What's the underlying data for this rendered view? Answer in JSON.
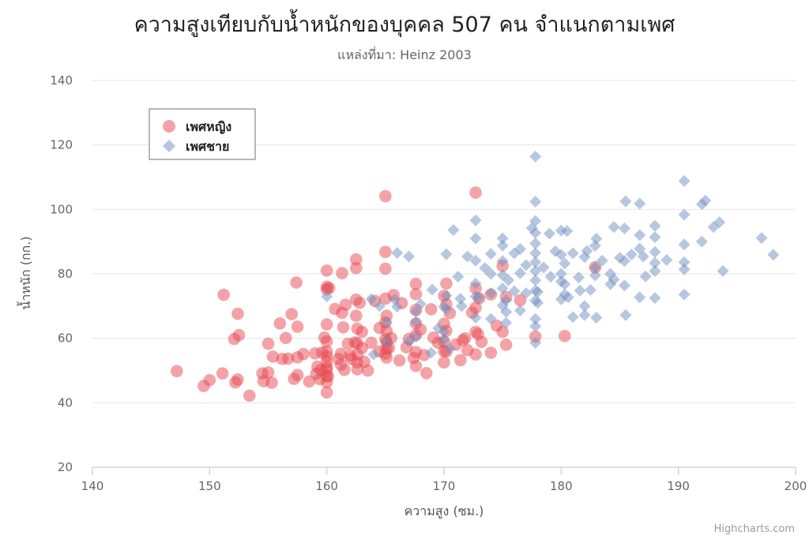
{
  "colors": {
    "female": "#e8484f",
    "male": "#6f8fc2",
    "grid": "#e6e6e6",
    "axis": "#ccd6eb"
  },
  "credits": "Highcharts.com",
  "chart_data": {
    "type": "scatter",
    "title": "ความสูงเทียบกับน้ำหนักของบุคคล 507 คน จำแนกตามเพศ",
    "subtitle": "แหล่งที่มา: Heinz 2003",
    "xlabel": "ความสูง (ซม.)",
    "ylabel": "น้ำหนัก (กก.)",
    "xlim": [
      140,
      200
    ],
    "ylim": [
      20,
      140
    ],
    "x_ticks": [
      140,
      150,
      160,
      170,
      180,
      190,
      200
    ],
    "y_ticks": [
      20,
      40,
      60,
      80,
      100,
      120,
      140
    ],
    "grid": true,
    "legend_position": "top-left",
    "series": [
      {
        "name": "เพศหญิง",
        "marker": "circle",
        "points": [
          [
            147.2,
            49.8
          ],
          [
            149.5,
            45.2
          ],
          [
            150.0,
            47.0
          ],
          [
            151.1,
            49.1
          ],
          [
            151.2,
            73.5
          ],
          [
            152.1,
            59.8
          ],
          [
            152.2,
            46.3
          ],
          [
            152.4,
            67.6
          ],
          [
            152.4,
            47.2
          ],
          [
            152.5,
            61.0
          ],
          [
            153.4,
            42.2
          ],
          [
            154.5,
            49.1
          ],
          [
            154.6,
            46.7
          ],
          [
            155.0,
            58.3
          ],
          [
            155.0,
            49.4
          ],
          [
            155.3,
            46.2
          ],
          [
            155.4,
            54.3
          ],
          [
            156.0,
            64.6
          ],
          [
            156.2,
            53.6
          ],
          [
            156.5,
            60.1
          ],
          [
            156.7,
            53.7
          ],
          [
            157.0,
            67.5
          ],
          [
            157.2,
            47.4
          ],
          [
            157.4,
            77.3
          ],
          [
            157.5,
            54.1
          ],
          [
            157.5,
            63.6
          ],
          [
            157.5,
            48.6
          ],
          [
            158.0,
            55.1
          ],
          [
            158.5,
            46.6
          ],
          [
            159.0,
            55.3
          ],
          [
            159.1,
            49.0
          ],
          [
            159.2,
            51.2
          ],
          [
            159.4,
            47.3
          ],
          [
            159.5,
            50.2
          ],
          [
            159.6,
            55.6
          ],
          [
            159.8,
            60.2
          ],
          [
            160.0,
            81.0
          ],
          [
            160.0,
            76.0
          ],
          [
            160.0,
            75.2
          ],
          [
            160.0,
            64.3
          ],
          [
            160.0,
            59.0
          ],
          [
            160.0,
            55.9
          ],
          [
            160.0,
            54.4
          ],
          [
            160.0,
            52.7
          ],
          [
            160.0,
            51.0
          ],
          [
            160.0,
            50.1
          ],
          [
            160.0,
            48.3
          ],
          [
            160.0,
            46.4
          ],
          [
            160.0,
            43.2
          ],
          [
            160.1,
            48.2
          ],
          [
            160.2,
            75.6
          ],
          [
            160.7,
            69.1
          ],
          [
            161.0,
            53.6
          ],
          [
            161.2,
            51.8
          ],
          [
            161.2,
            55.2
          ],
          [
            161.3,
            67.9
          ],
          [
            161.3,
            80.2
          ],
          [
            161.4,
            63.4
          ],
          [
            161.5,
            50.2
          ],
          [
            161.6,
            70.4
          ],
          [
            161.8,
            58.3
          ],
          [
            162.0,
            54.7
          ],
          [
            162.1,
            53.6
          ],
          [
            162.4,
            58.7
          ],
          [
            162.5,
            84.5
          ],
          [
            162.5,
            81.8
          ],
          [
            162.5,
            72.0
          ],
          [
            162.5,
            67.0
          ],
          [
            162.6,
            63.0
          ],
          [
            162.6,
            58.4
          ],
          [
            162.6,
            55.0
          ],
          [
            162.6,
            52.5
          ],
          [
            162.6,
            50.4
          ],
          [
            162.8,
            71.0
          ],
          [
            163.0,
            62.0
          ],
          [
            163.0,
            57.0
          ],
          [
            163.2,
            52.7
          ],
          [
            163.5,
            50.0
          ],
          [
            163.8,
            58.6
          ],
          [
            164.1,
            71.6
          ],
          [
            164.5,
            63.2
          ],
          [
            164.5,
            55.9
          ],
          [
            165.0,
            104.1
          ],
          [
            165.0,
            86.8
          ],
          [
            165.0,
            81.6
          ],
          [
            165.0,
            72.3
          ],
          [
            165.0,
            64.9
          ],
          [
            165.0,
            59.7
          ],
          [
            165.0,
            55.2
          ],
          [
            165.1,
            62.3
          ],
          [
            165.1,
            58.9
          ],
          [
            165.1,
            56.8
          ],
          [
            165.1,
            54.0
          ],
          [
            165.1,
            67.0
          ],
          [
            165.3,
            57.0
          ],
          [
            165.5,
            60.1
          ],
          [
            165.7,
            73.4
          ],
          [
            166.2,
            53.1
          ],
          [
            166.4,
            70.9
          ],
          [
            166.8,
            57.2
          ],
          [
            167.0,
            59.8
          ],
          [
            167.4,
            53.9
          ],
          [
            167.6,
            76.9
          ],
          [
            167.6,
            73.7
          ],
          [
            167.6,
            68.8
          ],
          [
            167.6,
            64.6
          ],
          [
            167.6,
            61.0
          ],
          [
            167.6,
            55.7
          ],
          [
            167.6,
            51.4
          ],
          [
            168.0,
            62.7
          ],
          [
            168.3,
            54.8
          ],
          [
            168.5,
            49.2
          ],
          [
            168.9,
            69.0
          ],
          [
            169.1,
            60.2
          ],
          [
            169.5,
            58.6
          ],
          [
            170.0,
            73.2
          ],
          [
            170.0,
            64.5
          ],
          [
            170.0,
            59.0
          ],
          [
            170.0,
            56.0
          ],
          [
            170.0,
            52.5
          ],
          [
            170.2,
            77.0
          ],
          [
            170.2,
            70.6
          ],
          [
            170.2,
            62.3
          ],
          [
            170.2,
            55.9
          ],
          [
            170.5,
            67.8
          ],
          [
            171.0,
            58.0
          ],
          [
            171.4,
            53.2
          ],
          [
            171.6,
            59.4
          ],
          [
            171.8,
            60.0
          ],
          [
            172.0,
            56.3
          ],
          [
            172.4,
            68.0
          ],
          [
            172.7,
            105.2
          ],
          [
            172.7,
            75.5
          ],
          [
            172.7,
            69.5
          ],
          [
            172.7,
            62.0
          ],
          [
            172.7,
            55.0
          ],
          [
            172.9,
            61.3
          ],
          [
            173.0,
            72.4
          ],
          [
            173.2,
            58.9
          ],
          [
            174.0,
            55.5
          ],
          [
            174.0,
            73.6
          ],
          [
            174.5,
            63.9
          ],
          [
            175.0,
            82.5
          ],
          [
            175.0,
            62.0
          ],
          [
            175.3,
            72.8
          ],
          [
            175.3,
            58.0
          ],
          [
            176.5,
            71.8
          ],
          [
            177.8,
            60.5
          ],
          [
            180.3,
            60.7
          ],
          [
            182.9,
            82.0
          ]
        ]
      },
      {
        "name": "เพศชาย",
        "marker": "diamond",
        "points": [
          [
            160.0,
            73.0
          ],
          [
            163.8,
            72.2
          ],
          [
            164.0,
            55.0
          ],
          [
            164.5,
            70.0
          ],
          [
            165.1,
            65.0
          ],
          [
            165.1,
            59.0
          ],
          [
            165.8,
            72.0
          ],
          [
            166.0,
            69.8
          ],
          [
            166.0,
            86.5
          ],
          [
            167.0,
            59.0
          ],
          [
            167.0,
            85.4
          ],
          [
            167.6,
            68.2
          ],
          [
            167.6,
            65.0
          ],
          [
            167.6,
            60.5
          ],
          [
            168.0,
            70.6
          ],
          [
            168.9,
            55.5
          ],
          [
            169.0,
            75.1
          ],
          [
            169.5,
            63.1
          ],
          [
            170.0,
            69.8
          ],
          [
            170.0,
            62.0
          ],
          [
            170.0,
            59.5
          ],
          [
            170.2,
            86.1
          ],
          [
            170.2,
            73.2
          ],
          [
            170.2,
            69.0
          ],
          [
            170.5,
            56.8
          ],
          [
            170.8,
            93.6
          ],
          [
            171.2,
            79.1
          ],
          [
            171.4,
            72.3
          ],
          [
            171.5,
            70.0
          ],
          [
            172.0,
            85.4
          ],
          [
            172.7,
            96.6
          ],
          [
            172.7,
            91.0
          ],
          [
            172.7,
            84.1
          ],
          [
            172.7,
            77.0
          ],
          [
            172.7,
            73.0
          ],
          [
            172.7,
            66.4
          ],
          [
            173.0,
            72.6
          ],
          [
            173.5,
            81.8
          ],
          [
            174.0,
            86.2
          ],
          [
            174.0,
            80.0
          ],
          [
            174.0,
            74.0
          ],
          [
            174.0,
            66.0
          ],
          [
            175.0,
            91.0
          ],
          [
            175.0,
            88.8
          ],
          [
            175.0,
            84.0
          ],
          [
            175.0,
            79.6
          ],
          [
            175.0,
            75.5
          ],
          [
            175.0,
            70.2
          ],
          [
            175.3,
            71.8
          ],
          [
            175.3,
            68.2
          ],
          [
            175.3,
            64.8
          ],
          [
            175.5,
            78.0
          ],
          [
            176.0,
            86.4
          ],
          [
            176.0,
            74.6
          ],
          [
            176.5,
            80.2
          ],
          [
            176.5,
            87.7
          ],
          [
            176.5,
            68.6
          ],
          [
            177.0,
            82.7
          ],
          [
            177.0,
            74.0
          ],
          [
            177.5,
            94.2
          ],
          [
            177.8,
            116.4
          ],
          [
            177.8,
            102.4
          ],
          [
            177.8,
            96.4
          ],
          [
            177.8,
            92.7
          ],
          [
            177.8,
            89.4
          ],
          [
            177.8,
            86.4
          ],
          [
            177.8,
            83.6
          ],
          [
            177.8,
            80.9
          ],
          [
            177.8,
            78.0
          ],
          [
            177.8,
            74.8
          ],
          [
            177.8,
            71.7
          ],
          [
            177.8,
            66.0
          ],
          [
            177.8,
            63.7
          ],
          [
            177.8,
            58.6
          ],
          [
            178.0,
            71.0
          ],
          [
            178.0,
            74.4
          ],
          [
            178.5,
            82.0
          ],
          [
            179.0,
            92.5
          ],
          [
            179.1,
            79.1
          ],
          [
            179.5,
            87.0
          ],
          [
            180.0,
            93.4
          ],
          [
            180.0,
            85.9
          ],
          [
            180.0,
            80.0
          ],
          [
            180.0,
            77.6
          ],
          [
            180.0,
            72.1
          ],
          [
            180.3,
            83.2
          ],
          [
            180.3,
            76.8
          ],
          [
            180.3,
            73.6
          ],
          [
            180.5,
            93.3
          ],
          [
            180.6,
            72.7
          ],
          [
            181.0,
            86.4
          ],
          [
            181.0,
            66.6
          ],
          [
            181.5,
            78.9
          ],
          [
            181.6,
            74.8
          ],
          [
            182.0,
            70.0
          ],
          [
            182.0,
            67.2
          ],
          [
            182.0,
            85.2
          ],
          [
            182.2,
            87.1
          ],
          [
            182.5,
            75.0
          ],
          [
            182.9,
            88.7
          ],
          [
            182.9,
            82.0
          ],
          [
            182.9,
            79.5
          ],
          [
            183.0,
            90.9
          ],
          [
            183.0,
            66.4
          ],
          [
            183.5,
            84.1
          ],
          [
            184.2,
            80.0
          ],
          [
            184.2,
            76.8
          ],
          [
            184.5,
            94.5
          ],
          [
            184.5,
            78.3
          ],
          [
            185.0,
            85.0
          ],
          [
            185.4,
            94.1
          ],
          [
            185.4,
            84.0
          ],
          [
            185.4,
            76.4
          ],
          [
            185.5,
            102.5
          ],
          [
            185.5,
            67.2
          ],
          [
            186.0,
            86.0
          ],
          [
            186.7,
            101.8
          ],
          [
            186.7,
            87.8
          ],
          [
            186.7,
            92.0
          ],
          [
            186.7,
            72.7
          ],
          [
            187.0,
            85.4
          ],
          [
            187.2,
            79.2
          ],
          [
            188.0,
            94.9
          ],
          [
            188.0,
            91.4
          ],
          [
            188.0,
            86.8
          ],
          [
            188.0,
            83.4
          ],
          [
            188.0,
            72.5
          ],
          [
            188.0,
            80.9
          ],
          [
            189.0,
            84.3
          ],
          [
            190.5,
            108.8
          ],
          [
            190.5,
            98.4
          ],
          [
            190.5,
            89.1
          ],
          [
            190.5,
            83.6
          ],
          [
            190.5,
            81.4
          ],
          [
            190.5,
            73.6
          ],
          [
            192.0,
            101.6
          ],
          [
            192.0,
            90.0
          ],
          [
            192.3,
            102.7
          ],
          [
            193.0,
            94.5
          ],
          [
            193.5,
            96.0
          ],
          [
            193.8,
            80.9
          ],
          [
            197.1,
            91.1
          ],
          [
            198.1,
            85.9
          ]
        ]
      }
    ]
  }
}
